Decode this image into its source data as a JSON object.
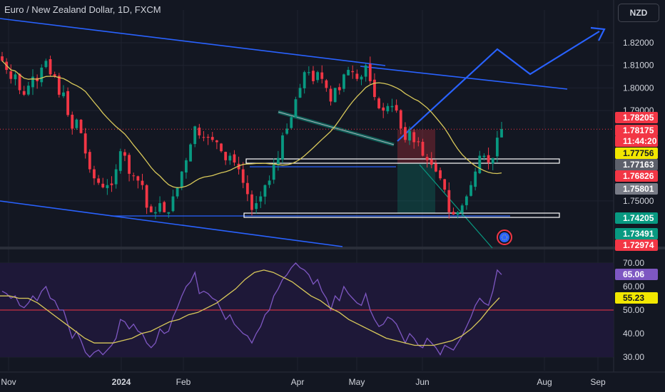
{
  "header": {
    "title": "Euro / New Zealand Dollar, 1D, FXCM",
    "currency": "NZD"
  },
  "colors": {
    "background": "#131722",
    "grid": "#1f2330",
    "up_candle": "#089981",
    "down_candle": "#f23645",
    "ma_line": "#d8c85a",
    "trend_line": "#2962ff",
    "rsi_line": "#7e57c2",
    "rsi_band": "#1e1838",
    "mid_line": "#f23645"
  },
  "chart_data": [
    {
      "type": "candlestick",
      "title": "Euro / New Zealand Dollar, 1D, FXCM",
      "y_range": [
        1.7285,
        1.8345
      ],
      "y_ticks": [
        {
          "v": 1.82,
          "label": "1.82000"
        },
        {
          "v": 1.81,
          "label": "1.81000"
        },
        {
          "v": 1.8,
          "label": "1.80000"
        },
        {
          "v": 1.79,
          "label": "1.79000"
        },
        {
          "v": 1.75,
          "label": "1.75000"
        }
      ],
      "x_ticks": [
        "Nov",
        "2024",
        "Feb",
        "Apr",
        "May",
        "Jun",
        "Aug",
        "Sep"
      ],
      "ohlc_path": [
        1.812,
        1.808,
        1.804,
        1.806,
        1.799,
        1.797,
        1.801,
        1.805,
        1.803,
        1.809,
        1.812,
        1.806,
        1.805,
        1.797,
        1.798,
        1.788,
        1.782,
        1.786,
        1.78,
        1.771,
        1.764,
        1.76,
        1.758,
        1.756,
        1.757,
        1.757,
        1.764,
        1.772,
        1.77,
        1.762,
        1.761,
        1.759,
        1.757,
        1.747,
        1.745,
        1.745,
        1.749,
        1.745,
        1.745,
        1.752,
        1.756,
        1.763,
        1.768,
        1.775,
        1.783,
        1.779,
        1.778,
        1.778,
        1.777,
        1.776,
        1.772,
        1.768,
        1.77,
        1.767,
        1.764,
        1.758,
        1.753,
        1.746,
        1.749,
        1.752,
        1.757,
        1.759,
        1.766,
        1.769,
        1.779,
        1.782,
        1.787,
        1.795,
        1.8,
        1.807,
        1.807,
        1.803,
        1.807,
        1.804,
        1.8,
        1.794,
        1.8,
        1.799,
        1.806,
        1.808,
        1.807,
        1.804,
        1.805,
        1.81,
        1.803,
        1.796,
        1.791,
        1.79,
        1.792,
        1.792,
        1.79,
        1.782,
        1.777,
        1.781,
        1.776,
        1.776,
        1.77,
        1.768,
        1.766,
        1.763,
        1.76,
        1.755,
        1.745,
        1.744,
        1.745,
        1.748,
        1.752,
        1.757,
        1.763,
        1.77,
        1.77,
        1.767,
        1.769,
        1.778,
        1.7818
      ],
      "last_price": 1.78175,
      "price_labels": [
        {
          "v": 1.78205,
          "label": "1.78205",
          "bg": "#f23645",
          "fg": "#ffffff"
        },
        {
          "v": 1.78175,
          "label": "1.78175",
          "bg": "#f23645",
          "fg": "#ffffff"
        },
        {
          "v": 1.7778,
          "label": "11:44:20",
          "bg": "#f23645",
          "fg": "#ffffff"
        },
        {
          "v": 1.77756,
          "label": "1.77756",
          "bg": "#f2e700",
          "fg": "#131722"
        },
        {
          "v": 1.77163,
          "label": "1.77163",
          "bg": "#5d606b",
          "fg": "#ffffff"
        },
        {
          "v": 1.76826,
          "label": "1.76826",
          "bg": "#f23645",
          "fg": "#ffffff"
        },
        {
          "v": 1.75801,
          "label": "1.75801",
          "bg": "#787b86",
          "fg": "#ffffff"
        },
        {
          "v": 1.74205,
          "label": "1.74205",
          "bg": "#089981",
          "fg": "#ffffff"
        },
        {
          "v": 1.73491,
          "label": "1.73491",
          "bg": "#089981",
          "fg": "#ffffff"
        },
        {
          "v": 1.72974,
          "label": "1.72974",
          "bg": "#f23645",
          "fg": "#ffffff"
        }
      ]
    },
    {
      "type": "line",
      "title": "RSI",
      "y_range": [
        25,
        73
      ],
      "y_ticks": [
        {
          "v": 70,
          "label": "70.00"
        },
        {
          "v": 60,
          "label": "60.00"
        },
        {
          "v": 50,
          "label": "50.00"
        },
        {
          "v": 40,
          "label": "40.00"
        },
        {
          "v": 30,
          "label": "30.00"
        }
      ],
      "rsi_path": [
        58,
        57,
        55,
        56,
        52,
        51,
        53,
        56,
        54,
        58,
        60,
        55,
        54,
        50,
        50,
        44,
        38,
        41,
        37,
        32,
        30,
        32,
        33,
        31,
        33,
        35,
        38,
        46,
        45,
        42,
        44,
        41,
        40,
        36,
        34,
        36,
        42,
        40,
        41,
        47,
        51,
        56,
        60,
        62,
        66,
        57,
        58,
        57,
        55,
        54,
        50,
        46,
        48,
        44,
        42,
        40,
        39,
        36,
        40,
        43,
        48,
        50,
        56,
        59,
        63,
        65,
        68,
        70,
        68,
        67,
        65,
        61,
        63,
        58,
        55,
        50,
        56,
        54,
        60,
        57,
        55,
        53,
        52,
        57,
        50,
        46,
        43,
        44,
        47,
        46,
        44,
        40,
        36,
        40,
        38,
        35,
        34,
        38,
        36,
        34,
        31,
        35,
        34,
        33,
        36,
        39,
        43,
        47,
        52,
        55,
        53,
        52,
        58,
        67,
        65.06
      ],
      "rsi_ma_path": [
        56,
        56,
        55,
        55,
        53,
        50,
        47,
        44,
        41,
        38,
        36,
        36,
        36,
        37,
        38,
        40,
        41,
        43,
        45,
        46,
        48,
        49,
        51,
        53,
        56,
        59,
        63,
        66,
        67,
        66,
        64,
        62,
        59,
        56,
        54,
        51,
        49,
        46,
        44,
        42,
        40,
        38,
        37,
        36,
        35,
        35,
        35,
        36,
        37,
        39,
        42,
        46,
        51,
        55.23
      ],
      "last_value": 65.06,
      "ma_value": 55.23,
      "value_labels": [
        {
          "v": 65.06,
          "label": "65.06",
          "bg": "#7e57c2",
          "fg": "#ffffff"
        },
        {
          "v": 55.23,
          "label": "55.23",
          "bg": "#f2e700",
          "fg": "#131722"
        }
      ]
    }
  ]
}
